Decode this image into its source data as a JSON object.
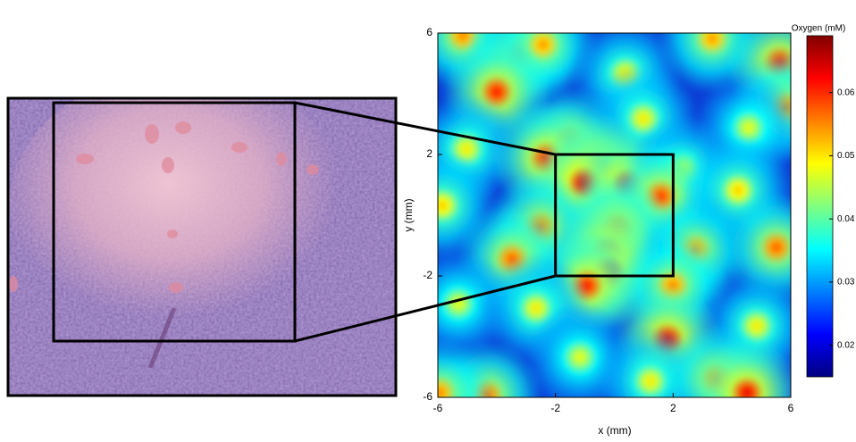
{
  "chart_data": {
    "type": "heatmap",
    "xlabel": "x (mm)",
    "ylabel": "y (mm)",
    "colorbar_label": "Oxygen (mM)",
    "xlim": [
      -6,
      6
    ],
    "ylim": [
      -6,
      6
    ],
    "xticks": [
      -6,
      -2,
      2,
      6
    ],
    "yticks": [
      -6,
      -2,
      2,
      6
    ],
    "clim": [
      0.015,
      0.069
    ],
    "cticks": [
      0.02,
      0.03,
      0.04,
      0.05,
      0.06
    ],
    "colormap": "jet",
    "zoom_box": {
      "x": [
        -2,
        2
      ],
      "y": [
        -2,
        2
      ]
    },
    "x": [
      -5.15,
      -3.17,
      -2.42,
      3.33,
      5.63,
      0.38,
      -4.0,
      5.85,
      0.99,
      4.57,
      -1.57,
      -5.03,
      -2.32,
      -0.47,
      -1.02,
      0.47,
      2.32,
      1.59,
      4.21,
      -5.85,
      -2.54,
      0.08,
      -0.23,
      -0.2,
      -0.93,
      -3.48,
      -5.3,
      -2.66,
      2.75,
      5.51,
      1.99,
      4.84,
      1.81,
      -1.17,
      1.23,
      3.51,
      4.51,
      -4.33,
      -5.94
    ],
    "y": [
      5.91,
      5.32,
      5.62,
      5.82,
      5.03,
      4.65,
      4.06,
      3.56,
      3.18,
      2.88,
      2.44,
      2.18,
      1.88,
      1.5,
      1.06,
      1.0,
      1.5,
      0.62,
      0.82,
      0.32,
      -0.41,
      -0.47,
      -1.24,
      -1.88,
      -2.32,
      -1.44,
      -2.91,
      -3.06,
      -1.15,
      -1.06,
      -2.32,
      -3.65,
      -4.09,
      -4.68,
      -5.47,
      -5.41,
      -5.85,
      -5.94,
      -5.85
    ],
    "values": [
      0.056,
      0.058,
      0.055,
      0.055,
      0.062,
      0.05,
      0.062,
      0.056,
      0.05,
      0.048,
      0.058,
      0.05,
      0.062,
      0.066,
      0.066,
      0.064,
      0.05,
      0.06,
      0.052,
      0.052,
      0.058,
      0.06,
      0.066,
      0.066,
      0.062,
      0.058,
      0.048,
      0.05,
      0.056,
      0.058,
      0.056,
      0.05,
      0.064,
      0.048,
      0.05,
      0.058,
      0.064,
      0.058,
      0.056
    ]
  }
}
